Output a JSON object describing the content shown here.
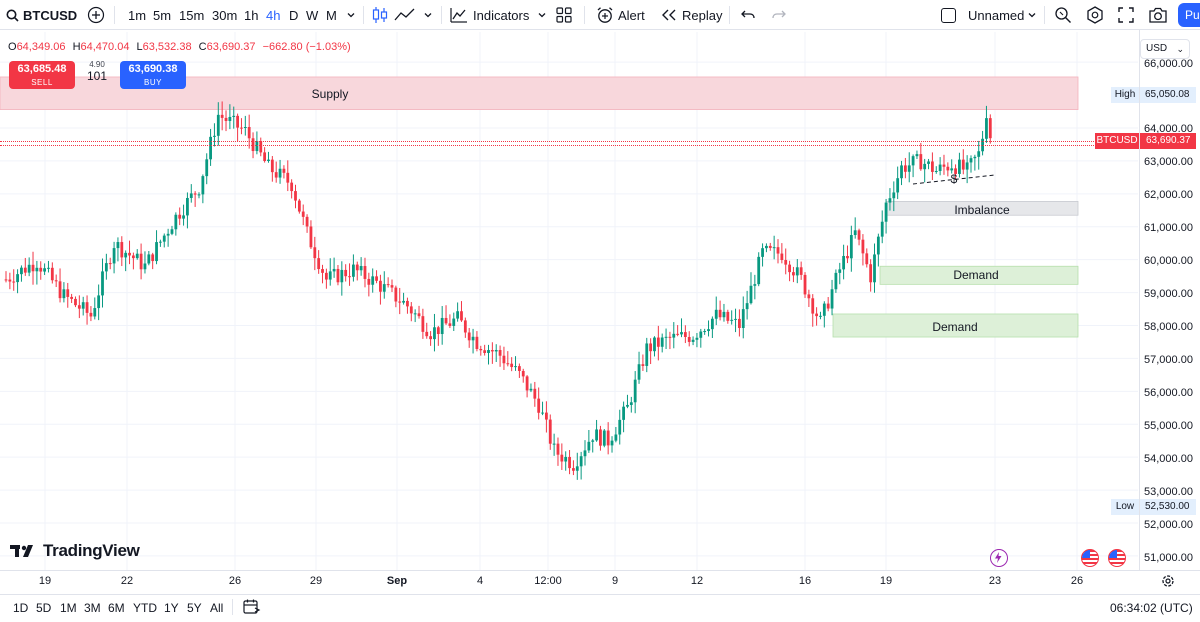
{
  "toolbar": {
    "symbol": "BTCUSD",
    "timeframes": [
      "1m",
      "5m",
      "15m",
      "30m",
      "1h",
      "4h",
      "D",
      "W",
      "M"
    ],
    "active_timeframe": "4h",
    "indicators_label": "Indicators",
    "alert_label": "Alert",
    "replay_label": "Replay",
    "layout_name": "Unnamed",
    "publish_label": "Pu"
  },
  "ohlc": {
    "open_label": "O",
    "open": "64,349.06",
    "high_label": "H",
    "high": "64,470.04",
    "low_label": "L",
    "low": "63,532.38",
    "close_label": "C",
    "close": "63,690.37",
    "change": "−662.80 (−1.03%)"
  },
  "trade": {
    "sell_price": "63,685.48",
    "sell_label": "SELL",
    "spread_top": "4.90",
    "spread": "101",
    "buy_price": "63,690.38",
    "buy_label": "BUY"
  },
  "zones": {
    "supply": "Supply",
    "imbalance": "Imbalance",
    "demand_1": "Demand",
    "demand_2": "Demand",
    "sweep_marker": "$"
  },
  "price_scale": {
    "currency": "USD",
    "labels": [
      "66,000.00",
      "64,000.00",
      "63,000.00",
      "62,000.00",
      "61,000.00",
      "60,000.00",
      "59,000.00",
      "58,000.00",
      "57,000.00",
      "56,000.00",
      "55,000.00",
      "54,000.00",
      "53,000.00",
      "52,000.00",
      "51,000.00"
    ],
    "high_tag": "High",
    "high_value": "65,050.08",
    "current_tag": "BTCUSD",
    "current_value": "63,690.37",
    "low_tag": "Low",
    "low_value": "52,530.00"
  },
  "time_axis": [
    "19",
    "22",
    "26",
    "29",
    "Sep",
    "4",
    "12:00",
    "9",
    "12",
    "16",
    "19",
    "23",
    "26"
  ],
  "brand": "TradingView",
  "bottom": {
    "ranges": [
      "1D",
      "5D",
      "1M",
      "3M",
      "6M",
      "YTD",
      "1Y",
      "5Y",
      "All"
    ],
    "clock": "06:34:02 (UTC)"
  },
  "colors": {
    "up": "#089981",
    "down": "#f23645",
    "accent": "#2962ff",
    "supply_zone": "#f8d7dc",
    "demand_zone": "#ddf0d8",
    "imbalance_zone": "#e6e7ea"
  },
  "chart_data": {
    "type": "candlestick",
    "symbol": "BTCUSD",
    "interval": "4h",
    "ylim": [
      51000,
      66300
    ],
    "y_ticks": [
      51000,
      52000,
      53000,
      54000,
      55000,
      56000,
      57000,
      58000,
      59000,
      60000,
      61000,
      62000,
      63000,
      64000,
      66000
    ],
    "x_labels": [
      "19",
      "22",
      "26",
      "29",
      "Sep",
      "4",
      "12:00",
      "9",
      "12",
      "16",
      "19",
      "23",
      "26"
    ],
    "trend_points": [
      [
        0,
        59400
      ],
      [
        8,
        59950
      ],
      [
        15,
        58900
      ],
      [
        22,
        58300
      ],
      [
        28,
        60500
      ],
      [
        36,
        59800
      ],
      [
        44,
        61300
      ],
      [
        50,
        62200
      ],
      [
        55,
        64400
      ],
      [
        62,
        63900
      ],
      [
        68,
        62800
      ],
      [
        74,
        62300
      ],
      [
        78,
        60800
      ],
      [
        83,
        59400
      ],
      [
        90,
        59700
      ],
      [
        96,
        59300
      ],
      [
        104,
        58600
      ],
      [
        110,
        57800
      ],
      [
        117,
        58200
      ],
      [
        122,
        57500
      ],
      [
        128,
        57100
      ],
      [
        133,
        56500
      ],
      [
        138,
        55600
      ],
      [
        142,
        54200
      ],
      [
        147,
        53800
      ],
      [
        152,
        54700
      ],
      [
        156,
        54500
      ],
      [
        161,
        55500
      ],
      [
        166,
        57300
      ],
      [
        172,
        57600
      ],
      [
        178,
        57700
      ],
      [
        184,
        58300
      ],
      [
        190,
        58000
      ],
      [
        196,
        60200
      ],
      [
        201,
        60200
      ],
      [
        206,
        59400
      ],
      [
        211,
        58100
      ],
      [
        216,
        59700
      ],
      [
        220,
        60800
      ],
      [
        224,
        59500
      ],
      [
        228,
        61700
      ],
      [
        232,
        62800
      ],
      [
        237,
        63000
      ],
      [
        241,
        62700
      ],
      [
        245,
        62900
      ],
      [
        249,
        62700
      ],
      [
        252,
        63200
      ],
      [
        254,
        64300
      ],
      [
        255,
        63690
      ]
    ],
    "last_close": 63690.37,
    "session_high": 65050.08,
    "session_low": 52530.0,
    "zones": [
      {
        "name": "Supply",
        "from": 64560,
        "to": 65550
      },
      {
        "name": "Imbalance",
        "from": 61350,
        "to": 61770
      },
      {
        "name": "Demand",
        "from": 59250,
        "to": 59800
      },
      {
        "name": "Demand",
        "from": 57650,
        "to": 58350
      }
    ]
  }
}
